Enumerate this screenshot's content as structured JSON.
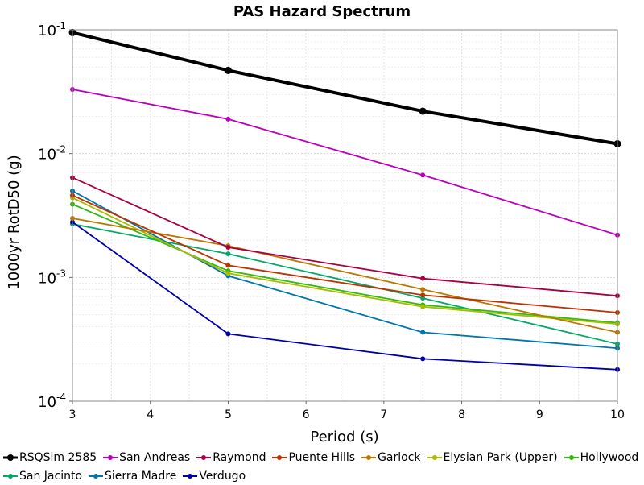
{
  "chart_data": {
    "type": "line",
    "title": "PAS Hazard Spectrum",
    "xlabel": "Period (s)",
    "ylabel": "1000yr RotD50 (g)",
    "xlim": [
      3,
      10
    ],
    "ylim": [
      0.0001,
      0.1
    ],
    "yscale": "log",
    "grid": true,
    "legend_position": "bottom",
    "x_ticks": [
      "3",
      "4",
      "5",
      "6",
      "7",
      "8",
      "9",
      "10"
    ],
    "y_ticks": [
      {
        "base": "10",
        "exp": "-1",
        "value": 0.1
      },
      {
        "base": "10",
        "exp": "-2",
        "value": 0.01
      },
      {
        "base": "10",
        "exp": "-3",
        "value": 0.001
      },
      {
        "base": "10",
        "exp": "-4",
        "value": 0.0001
      }
    ],
    "x": [
      3,
      5,
      7.5,
      10
    ],
    "series": [
      {
        "name": "San Jacinto",
        "color": "#00aa66",
        "values": [
          0.0027,
          0.00155,
          0.00068,
          0.00029
        ]
      },
      {
        "name": "Sierra Madre",
        "color": "#0077aa",
        "values": [
          0.005,
          0.00103,
          0.00036,
          0.000268
        ]
      },
      {
        "name": "Verdugo",
        "color": "#0000aa",
        "values": [
          0.0028,
          0.00035,
          0.00022,
          0.00018
        ]
      },
      {
        "name": "Hollywood",
        "color": "#33bb11",
        "values": [
          0.0039,
          0.00113,
          0.0006,
          0.00043
        ]
      },
      {
        "name": "Elysian Park (Upper)",
        "color": "#aabb00",
        "values": [
          0.0044,
          0.00108,
          0.00058,
          0.00042
        ]
      },
      {
        "name": "Garlock",
        "color": "#bb7700",
        "values": [
          0.003,
          0.0018,
          0.0008,
          0.00036
        ]
      },
      {
        "name": "Puente Hills",
        "color": "#bb3300",
        "values": [
          0.0046,
          0.00125,
          0.00072,
          0.00052
        ]
      },
      {
        "name": "Raymond",
        "color": "#aa0044",
        "values": [
          0.0064,
          0.00175,
          0.00098,
          0.00071
        ]
      },
      {
        "name": "San Andreas",
        "color": "#bb00bb",
        "values": [
          0.033,
          0.019,
          0.0067,
          0.0022
        ]
      },
      {
        "name": "RSQSim 2585",
        "color": "#000000",
        "values": [
          0.095,
          0.047,
          0.022,
          0.012
        ],
        "bold": true
      }
    ]
  },
  "legend_rows": [
    [
      "RSQSim 2585",
      "San Andreas",
      "Raymond",
      "Puente Hills",
      "Garlock",
      "Elysian Park (Upper)",
      "Hollywood"
    ],
    [
      "San Jacinto",
      "Sierra Madre",
      "Verdugo"
    ]
  ]
}
